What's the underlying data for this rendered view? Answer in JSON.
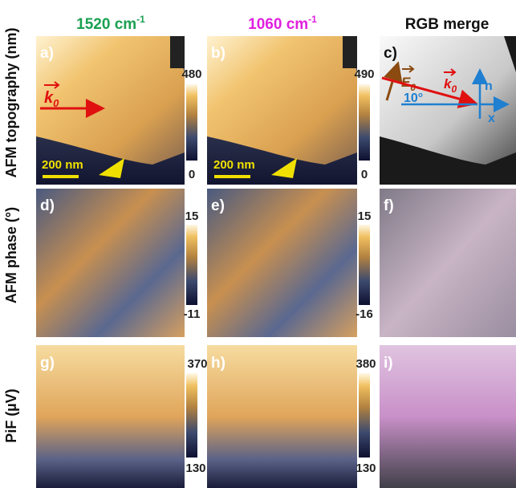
{
  "columns": [
    {
      "text": "1520 cm",
      "sup": "-1"
    },
    {
      "text": "1060 cm",
      "sup": "-1"
    },
    {
      "text": "RGB merge"
    }
  ],
  "rows": [
    "AFM topography (nm)",
    "AFM phase (°)",
    "PiF (µV)"
  ],
  "panels": [
    "a)",
    "b)",
    "c)",
    "d)",
    "e)",
    "f)",
    "g)",
    "h)",
    "i)"
  ],
  "colorbars": [
    {
      "max": 480,
      "min": 0
    },
    {
      "max": 490,
      "min": 0
    },
    {
      "max": 15,
      "min": -11
    },
    {
      "max": 15,
      "min": -16
    },
    {
      "max": 370,
      "min": 130
    },
    {
      "max": 380,
      "min": 130
    }
  ],
  "annotations": {
    "scale_bar": "200 nm",
    "k": "k",
    "k_sub": "0",
    "e": "E",
    "e_sub": "0",
    "angle": "10°",
    "n": "n",
    "x": "x"
  }
}
